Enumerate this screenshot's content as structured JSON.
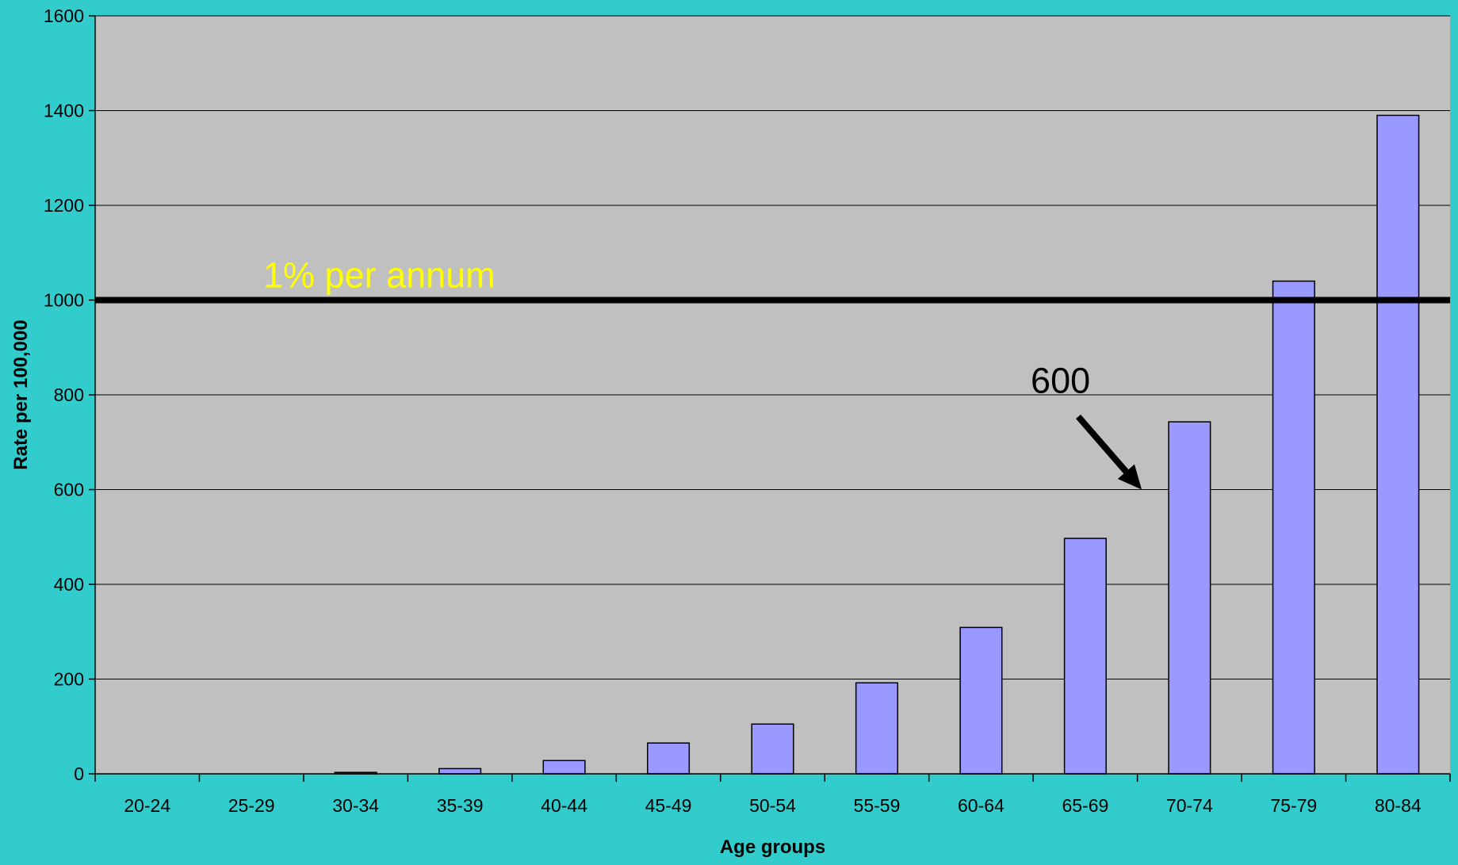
{
  "chart_data": {
    "type": "bar",
    "title": "",
    "xlabel": "Age groups",
    "ylabel": "Rate per 100,000",
    "categories": [
      "20-24",
      "25-29",
      "30-34",
      "35-39",
      "40-44",
      "45-49",
      "50-54",
      "55-59",
      "60-64",
      "65-69",
      "70-74",
      "75-79",
      "80-84"
    ],
    "values": [
      0,
      0,
      3,
      11,
      28,
      65,
      105,
      192,
      309,
      497,
      743,
      1040,
      1390
    ],
    "ylim": [
      0,
      1600
    ],
    "yticks": [
      0,
      200,
      400,
      600,
      800,
      1000,
      1200,
      1400,
      1600
    ],
    "ytick_labels": [
      "0",
      "200",
      "400",
      "600",
      "800",
      "1000",
      "1200",
      "1400",
      "1600"
    ],
    "grid": true,
    "legend": "none",
    "reference_line": {
      "value": 1000,
      "label": "1% per annum"
    },
    "annotation": {
      "text": "600",
      "points_to_value": 600,
      "points_to_category": "70-74"
    },
    "colors": {
      "background": "#33CCCC",
      "plot_area": "#C0C0C0",
      "bar_fill": "#9999FF",
      "bar_stroke": "#000000",
      "gridline": "#000000",
      "reference_line": "#000000",
      "reference_label": "#FFFF00",
      "annotation": "#000000"
    }
  }
}
